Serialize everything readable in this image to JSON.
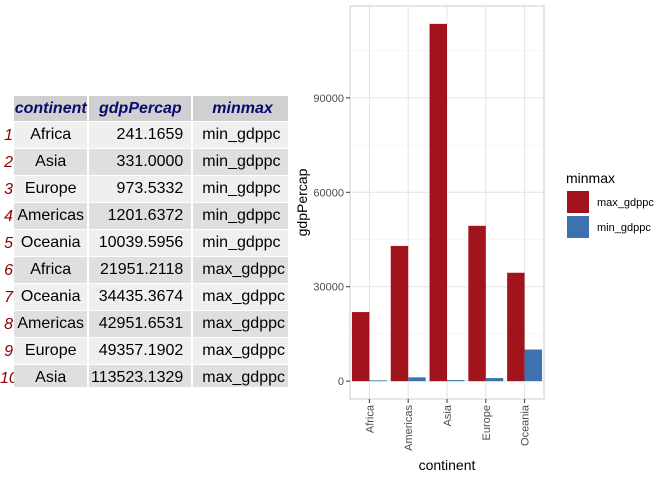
{
  "table": {
    "headers": [
      "continent",
      "gdpPercap",
      "minmax"
    ],
    "rows": [
      {
        "id": "1",
        "continent": "Africa",
        "gdpPercap": "241.1659",
        "minmax": "min_gdppc"
      },
      {
        "id": "2",
        "continent": "Asia",
        "gdpPercap": "331.0000",
        "minmax": "min_gdppc"
      },
      {
        "id": "3",
        "continent": "Europe",
        "gdpPercap": "973.5332",
        "minmax": "min_gdppc"
      },
      {
        "id": "4",
        "continent": "Americas",
        "gdpPercap": "1201.6372",
        "minmax": "min_gdppc"
      },
      {
        "id": "5",
        "continent": "Oceania",
        "gdpPercap": "10039.5956",
        "minmax": "min_gdppc"
      },
      {
        "id": "6",
        "continent": "Africa",
        "gdpPercap": "21951.2118",
        "minmax": "max_gdppc"
      },
      {
        "id": "7",
        "continent": "Oceania",
        "gdpPercap": "34435.3674",
        "minmax": "max_gdppc"
      },
      {
        "id": "8",
        "continent": "Americas",
        "gdpPercap": "42951.6531",
        "minmax": "max_gdppc"
      },
      {
        "id": "9",
        "continent": "Europe",
        "gdpPercap": "49357.1902",
        "minmax": "max_gdppc"
      },
      {
        "id": "10",
        "continent": "Asia",
        "gdpPercap": "113523.1329",
        "minmax": "max_gdppc"
      }
    ],
    "colors": {
      "header_bg": "#d0d0d0",
      "header_text": "#0a0a6e",
      "row_id": "#8b0000"
    }
  },
  "chart_data": {
    "type": "bar",
    "title": "",
    "xlabel": "continent",
    "ylabel": "gdpPercap",
    "categories": [
      "Africa",
      "Americas",
      "Asia",
      "Europe",
      "Oceania"
    ],
    "series": [
      {
        "name": "max_gdppc",
        "color": "#a2141c",
        "values": [
          21951.2118,
          42951.6531,
          113523.1329,
          49357.1902,
          34435.3674
        ]
      },
      {
        "name": "min_gdppc",
        "color": "#3b72af",
        "values": [
          241.1659,
          1201.6372,
          331.0,
          973.5332,
          10039.5956
        ]
      }
    ],
    "ylim": [
      -5676,
      119199
    ],
    "yticks": [
      0,
      30000,
      60000,
      90000
    ],
    "ytick_labels": [
      "0",
      "30000",
      "60000",
      "90000"
    ],
    "legend_title": "minmax",
    "legend_position": "right",
    "grid": true,
    "x_tick_rotation": "vertical"
  }
}
